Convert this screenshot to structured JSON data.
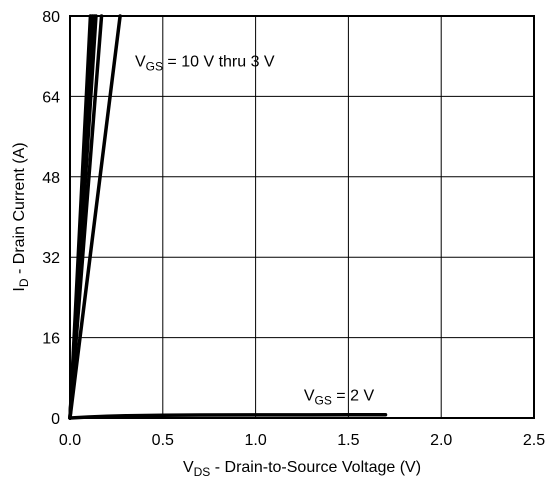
{
  "chart_data": {
    "type": "line",
    "xlabel": {
      "main": "V",
      "sub": "DS",
      "rest": " - Drain-to-Source Voltage (V)"
    },
    "ylabel": {
      "main": "I",
      "sub": "D",
      "rest": " - Drain Current (A)"
    },
    "xlim": [
      0,
      2.5
    ],
    "ylim": [
      0,
      80
    ],
    "xticks": [
      0,
      0.5,
      1,
      1.5,
      2,
      2.5
    ],
    "xtick_labels": [
      "0.0",
      "0.5",
      "1.0",
      "1.5",
      "2.0",
      "2.5"
    ],
    "yticks": [
      0,
      16,
      32,
      48,
      64,
      80
    ],
    "ytick_labels": [
      "0",
      "16",
      "32",
      "48",
      "64",
      "80"
    ],
    "grid": true,
    "series": [
      {
        "x": [
          0,
          0.11
        ],
        "y": [
          0,
          80
        ]
      },
      {
        "x": [
          0,
          0.12
        ],
        "y": [
          0,
          80
        ]
      },
      {
        "x": [
          0,
          0.13
        ],
        "y": [
          0,
          80
        ]
      },
      {
        "x": [
          0,
          0.14
        ],
        "y": [
          0,
          80
        ]
      },
      {
        "x": [
          0,
          0.17
        ],
        "y": [
          0,
          80
        ]
      },
      {
        "x": [
          0,
          0.27
        ],
        "y": [
          0,
          80
        ]
      },
      {
        "x": [
          0,
          0.05,
          0.1,
          0.2,
          0.3,
          0.5,
          0.7,
          1.0,
          1.3,
          1.5,
          1.7
        ],
        "y": [
          0,
          0.1,
          0.2,
          0.35,
          0.45,
          0.55,
          0.6,
          0.62,
          0.63,
          0.64,
          0.65
        ]
      }
    ],
    "annotations": [
      {
        "main": "V",
        "sub": "GS",
        "rest": " = 10 V thru 3 V",
        "x": 0.35,
        "y": 70
      },
      {
        "main": "V",
        "sub": "GS",
        "rest": " = 2 V",
        "x": 1.26,
        "y": 3.5
      }
    ]
  }
}
